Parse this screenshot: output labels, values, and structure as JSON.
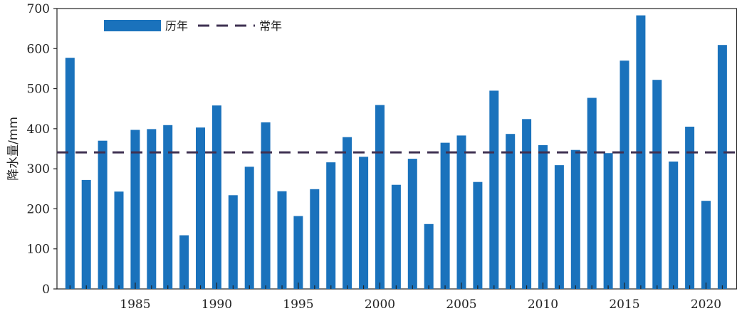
{
  "chart_data": {
    "type": "bar",
    "title": "",
    "xlabel": "",
    "ylabel": "降水量/mm",
    "ylim": [
      0,
      700
    ],
    "xlim": [
      1980.2,
      2021.9
    ],
    "yticks": [
      0,
      100,
      200,
      300,
      400,
      500,
      600,
      700
    ],
    "xticks": [
      1985,
      1990,
      1995,
      2000,
      2005,
      2010,
      2015,
      2020
    ],
    "grid": false,
    "legend_position": "top-left",
    "colors": {
      "bar": "#1a72bc",
      "baseline": "#3f3152",
      "axis": "#222222"
    },
    "series": [
      {
        "name": "历年",
        "x": [
          1981,
          1982,
          1983,
          1984,
          1985,
          1986,
          1987,
          1988,
          1989,
          1990,
          1991,
          1992,
          1993,
          1994,
          1995,
          1996,
          1997,
          1998,
          1999,
          2000,
          2001,
          2002,
          2003,
          2004,
          2005,
          2006,
          2007,
          2008,
          2009,
          2010,
          2011,
          2012,
          2013,
          2014,
          2015,
          2016,
          2017,
          2018,
          2019,
          2020,
          2021
        ],
        "values": [
          577,
          272,
          370,
          243,
          397,
          399,
          409,
          134,
          403,
          458,
          234,
          305,
          416,
          244,
          182,
          249,
          316,
          379,
          330,
          459,
          260,
          325,
          162,
          365,
          383,
          267,
          495,
          387,
          424,
          359,
          309,
          347,
          477,
          339,
          570,
          683,
          522,
          318,
          405,
          220,
          609
        ]
      },
      {
        "name": "常年",
        "type": "line",
        "style": "dashed",
        "value": 341
      }
    ]
  }
}
